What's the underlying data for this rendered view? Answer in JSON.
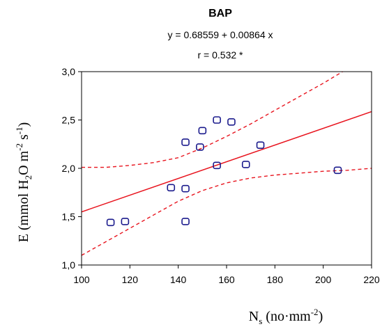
{
  "chart_data": {
    "type": "scatter",
    "title": "BAP",
    "equation": "y = 0.68559 + 0.00864 x",
    "correlation": "r = 0.532 *",
    "xlabel": {
      "base": "N",
      "sub": "s",
      "rest": " (no·mm",
      "sup": "-2",
      "close": ")"
    },
    "ylabel": {
      "p1": "E (mmol H",
      "sub": "2",
      "p2": "O m",
      "sup1": "-2",
      "p3": " s",
      "sup2": "-1",
      "p4": ")"
    },
    "xlim": [
      100,
      220
    ],
    "ylim": [
      1.0,
      3.0
    ],
    "x_ticks": [
      100,
      120,
      140,
      160,
      180,
      200,
      220
    ],
    "y_ticks": [
      1.0,
      1.5,
      2.0,
      2.5,
      3.0
    ],
    "y_tick_labels": [
      "1,0",
      "1,5",
      "2,0",
      "2,5",
      "3,0"
    ],
    "grid": false,
    "points": [
      {
        "x": 112,
        "y": 1.44
      },
      {
        "x": 118,
        "y": 1.45
      },
      {
        "x": 137,
        "y": 1.8
      },
      {
        "x": 143,
        "y": 1.79
      },
      {
        "x": 143,
        "y": 1.45
      },
      {
        "x": 143,
        "y": 2.27
      },
      {
        "x": 149,
        "y": 2.22
      },
      {
        "x": 150,
        "y": 2.39
      },
      {
        "x": 156,
        "y": 2.5
      },
      {
        "x": 156,
        "y": 2.03
      },
      {
        "x": 162,
        "y": 2.48
      },
      {
        "x": 168,
        "y": 2.04
      },
      {
        "x": 174,
        "y": 2.24
      },
      {
        "x": 206,
        "y": 1.98
      }
    ],
    "regression": {
      "intercept": 0.68559,
      "slope": 0.00864
    },
    "confidence_upper": [
      {
        "x": 100,
        "y": 2.01
      },
      {
        "x": 110,
        "y": 2.01
      },
      {
        "x": 120,
        "y": 2.03
      },
      {
        "x": 130,
        "y": 2.06
      },
      {
        "x": 140,
        "y": 2.11
      },
      {
        "x": 150,
        "y": 2.21
      },
      {
        "x": 160,
        "y": 2.33
      },
      {
        "x": 170,
        "y": 2.46
      },
      {
        "x": 180,
        "y": 2.6
      },
      {
        "x": 190,
        "y": 2.74
      },
      {
        "x": 200,
        "y": 2.88
      },
      {
        "x": 206,
        "y": 2.97
      },
      {
        "x": 208,
        "y": 3.0
      }
    ],
    "confidence_lower": [
      {
        "x": 100,
        "y": 1.1
      },
      {
        "x": 110,
        "y": 1.24
      },
      {
        "x": 120,
        "y": 1.38
      },
      {
        "x": 130,
        "y": 1.52
      },
      {
        "x": 140,
        "y": 1.66
      },
      {
        "x": 150,
        "y": 1.77
      },
      {
        "x": 160,
        "y": 1.85
      },
      {
        "x": 170,
        "y": 1.9
      },
      {
        "x": 180,
        "y": 1.93
      },
      {
        "x": 190,
        "y": 1.95
      },
      {
        "x": 200,
        "y": 1.97
      },
      {
        "x": 210,
        "y": 1.98
      },
      {
        "x": 220,
        "y": 2.0
      }
    ],
    "colors": {
      "points": "#1a1a8c",
      "fit": "#e8141e",
      "axes": "#000000"
    }
  }
}
